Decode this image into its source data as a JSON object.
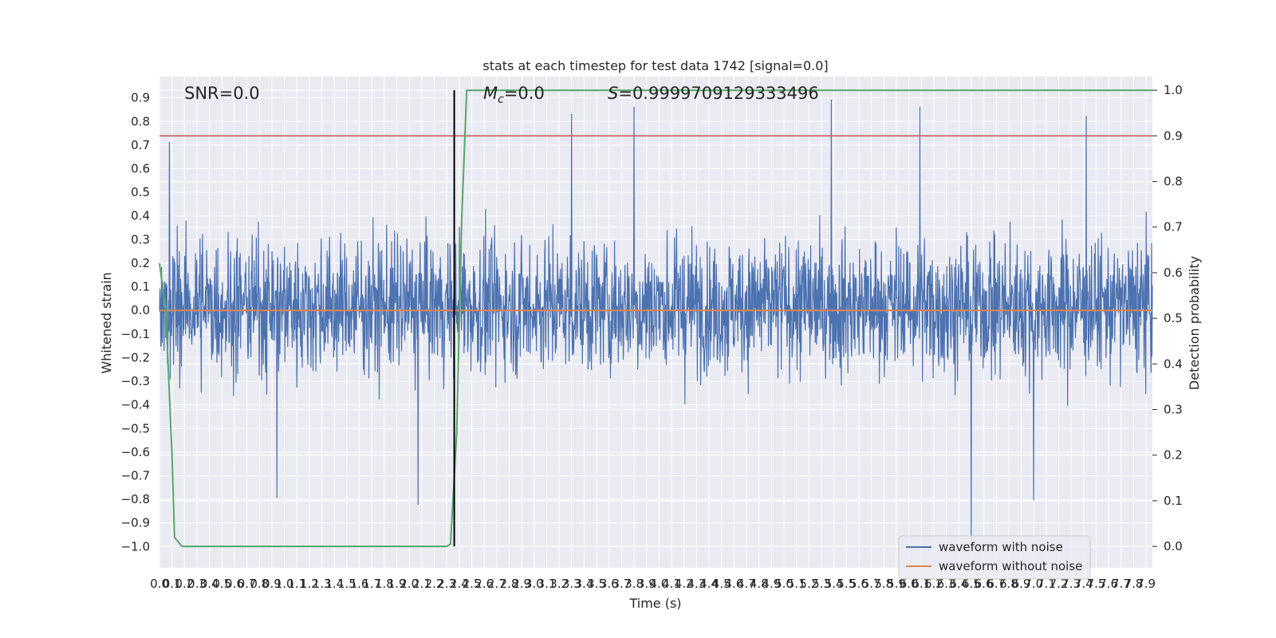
{
  "chart_data": {
    "type": "line",
    "title": "stats at each timestep for test data 1742 [signal=0.0]",
    "xlabel": "Time (s)",
    "ylabel": "Whitened strain",
    "y2label": "Detection probability",
    "xlim": [
      0.0,
      7.95
    ],
    "ylim": [
      -1.09,
      0.99
    ],
    "y2lim": [
      -0.047,
      1.03
    ],
    "grid": true,
    "x_ticks": [
      "0.0",
      "0.1",
      "0.2",
      "0.3",
      "0.4",
      "0.5",
      "0.6",
      "0.7",
      "0.8",
      "0.9",
      "1.0",
      "1.1",
      "1.2",
      "1.3",
      "1.4",
      "1.5",
      "1.6",
      "1.7",
      "1.8",
      "1.9",
      "2.0",
      "2.1",
      "2.2",
      "2.3",
      "2.4",
      "2.5",
      "2.6",
      "2.7",
      "2.8",
      "2.9",
      "3.0",
      "3.1",
      "3.2",
      "3.3",
      "3.4",
      "3.5",
      "3.6",
      "3.7",
      "3.8",
      "3.9",
      "4.0",
      "4.1",
      "4.2",
      "4.3",
      "4.4",
      "4.5",
      "4.6",
      "4.7",
      "4.8",
      "4.9",
      "5.0",
      "5.1",
      "5.2",
      "5.3",
      "5.4",
      "5.5",
      "5.6",
      "5.7",
      "5.8",
      "5.9",
      "6.0",
      "6.1",
      "6.2",
      "6.3",
      "6.4",
      "6.5",
      "6.6",
      "6.7",
      "6.8",
      "6.9",
      "7.0",
      "7.1",
      "7.2",
      "7.3",
      "7.4",
      "7.5",
      "7.6",
      "7.7",
      "7.8",
      "7.9"
    ],
    "y_ticks": [
      "0.9",
      "0.8",
      "0.7",
      "0.6",
      "0.5",
      "0.4",
      "0.3",
      "0.2",
      "0.1",
      "0.0",
      "−0.1",
      "−0.2",
      "−0.3",
      "−0.4",
      "−0.5",
      "−0.6",
      "−0.7",
      "−0.8",
      "−0.9",
      "−1.0"
    ],
    "y2_ticks": [
      "1.0",
      "0.9",
      "0.8",
      "0.7",
      "0.6",
      "0.5",
      "0.4",
      "0.3",
      "0.2",
      "0.1",
      "0.0"
    ],
    "annotations": {
      "snr": "SNR=0.0",
      "mc_symbol": "M",
      "mc_sub": "c",
      "mc_value": "=0.0",
      "s_symbol": "S",
      "s_value": "=0.9999709129333496"
    },
    "series": [
      {
        "name": "waveform with noise",
        "color": "#4c72b0",
        "description_level": "dense noise between about -0.5 and 0.6, extremes -1.0 and 0.9",
        "peaks": [
          {
            "x": 0.08,
            "y": 0.71
          },
          {
            "x": 3.3,
            "y": 0.83
          },
          {
            "x": 3.8,
            "y": 0.86
          },
          {
            "x": 5.38,
            "y": 0.89
          },
          {
            "x": 6.09,
            "y": 0.86
          },
          {
            "x": 7.42,
            "y": 0.82
          },
          {
            "x": 2.07,
            "y": -0.82
          },
          {
            "x": 0.94,
            "y": -0.79
          },
          {
            "x": 6.5,
            "y": -1.0
          },
          {
            "x": 7.0,
            "y": -0.8
          }
        ]
      },
      {
        "name": "waveform without noise",
        "color": "#dd8452",
        "y_const": 0.0
      },
      {
        "name": "detection probability",
        "color": "#55a868",
        "axis": "right",
        "points": [
          [
            0.0,
            0.62
          ],
          [
            0.05,
            0.52
          ],
          [
            0.1,
            0.2
          ],
          [
            0.12,
            0.02
          ],
          [
            0.18,
            0.0
          ],
          [
            2.3,
            0.0
          ],
          [
            2.33,
            0.005
          ],
          [
            2.38,
            0.25
          ],
          [
            2.42,
            0.72
          ],
          [
            2.46,
            1.0
          ],
          [
            7.95,
            1.0
          ]
        ]
      }
    ],
    "reference_lines": {
      "threshold_right": 0.9,
      "threshold_color": "#c44e52",
      "vline_x": 2.36,
      "vline_color": "#000000"
    },
    "legend": {
      "placement": "lower-right",
      "entries": [
        "waveform with noise",
        "waveform without noise"
      ]
    }
  }
}
